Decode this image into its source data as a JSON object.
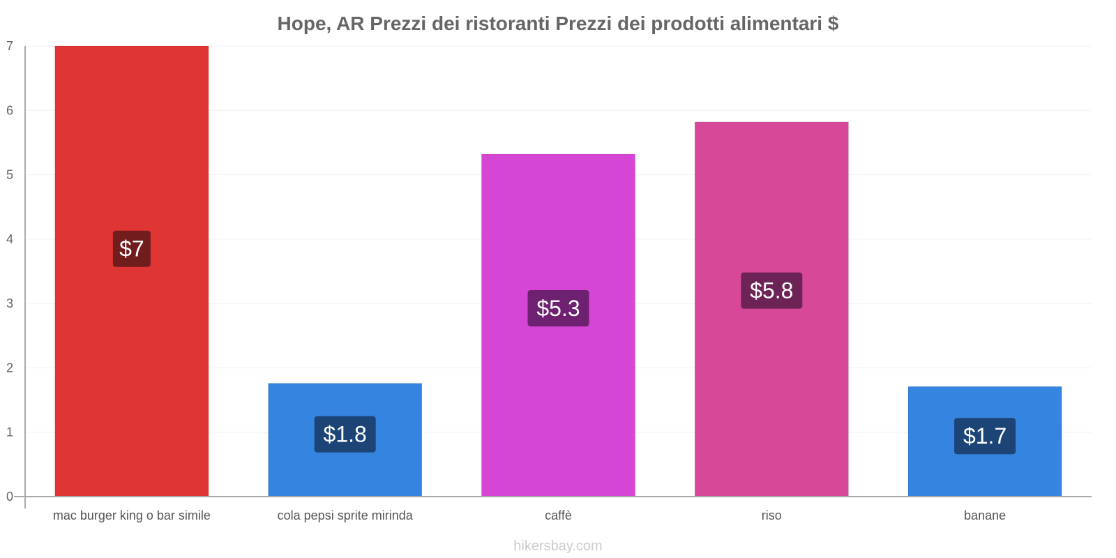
{
  "chart_data": {
    "type": "bar",
    "title": "Hope, AR Prezzi dei ristoranti Prezzi dei prodotti alimentari $",
    "xlabel": "",
    "ylabel": "",
    "ylim": [
      0,
      7
    ],
    "yticks": [
      0,
      1,
      2,
      3,
      4,
      5,
      6,
      7
    ],
    "grid": true,
    "categories": [
      "mac burger king o bar simile",
      "cola pepsi sprite mirinda",
      "caffè",
      "riso",
      "banane"
    ],
    "values": [
      7,
      1.76,
      5.32,
      5.82,
      1.71
    ],
    "value_labels": [
      "$7",
      "$1.8",
      "$5.3",
      "$5.8",
      "$1.7"
    ],
    "bar_colors": [
      "#e03535",
      "#3584e0",
      "#d546d5",
      "#d84899",
      "#3584e0"
    ],
    "label_bg_colors": [
      "#711d1d",
      "#1c4476",
      "#6d2170",
      "#6d2356",
      "#1c4476"
    ]
  },
  "footer": {
    "source": "hikersbay.com"
  }
}
